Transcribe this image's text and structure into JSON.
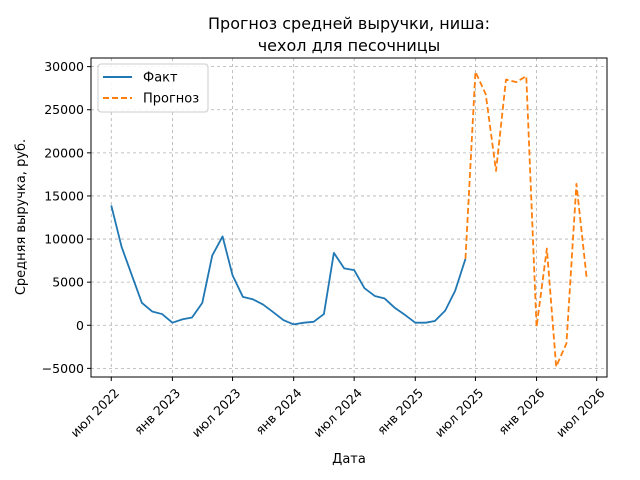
{
  "chart_data": {
    "type": "line",
    "title": [
      "Прогноз средней выручки, ниша:",
      "чехол для песочницы"
    ],
    "xlabel": "Дата",
    "ylabel": "Средняя выручка, руб.",
    "ylim": [
      -6000,
      31000
    ],
    "yticks": [
      -5000,
      0,
      5000,
      10000,
      15000,
      20000,
      25000,
      30000
    ],
    "ytick_labels": [
      "−5000",
      "0",
      "5000",
      "10000",
      "15000",
      "20000",
      "25000",
      "30000"
    ],
    "xlim": [
      "2022-05-01",
      "2026-08-01"
    ],
    "xticks": [
      "2022-07-01",
      "2023-01-01",
      "2023-07-01",
      "2024-01-01",
      "2024-07-01",
      "2025-01-01",
      "2025-07-01",
      "2026-01-01",
      "2026-07-01"
    ],
    "xtick_labels": [
      "июл 2022",
      "янв 2023",
      "июл 2023",
      "янв 2024",
      "июл 2024",
      "янв 2025",
      "июл 2025",
      "янв 2026",
      "июл 2026"
    ],
    "grid": true,
    "legend_position": "top-left",
    "series": [
      {
        "name": "Факт",
        "color": "#1f77b4",
        "style": "solid",
        "x": [
          "2022-07-01",
          "2022-08-01",
          "2022-09-01",
          "2022-10-01",
          "2022-11-01",
          "2022-12-01",
          "2023-01-01",
          "2023-02-01",
          "2023-03-01",
          "2023-04-01",
          "2023-05-01",
          "2023-06-01",
          "2023-07-01",
          "2023-08-01",
          "2023-09-01",
          "2023-10-01",
          "2023-11-01",
          "2023-12-01",
          "2024-01-01",
          "2024-02-01",
          "2024-03-01",
          "2024-04-01",
          "2024-05-01",
          "2024-06-01",
          "2024-07-01",
          "2024-08-01",
          "2024-09-01",
          "2024-10-01",
          "2024-11-01",
          "2024-12-01",
          "2025-01-01",
          "2025-02-01",
          "2025-03-01",
          "2025-04-01",
          "2025-05-01",
          "2025-06-01"
        ],
        "values": [
          13900,
          9100,
          5800,
          2600,
          1600,
          1300,
          300,
          700,
          900,
          2600,
          8100,
          10300,
          5800,
          3300,
          3000,
          2400,
          1500,
          600,
          100,
          300,
          400,
          1300,
          8400,
          6600,
          6400,
          4300,
          3400,
          3100,
          2000,
          1200,
          300,
          300,
          500,
          1700,
          4000,
          7700
        ]
      },
      {
        "name": "Прогноз",
        "color": "#ff7f0e",
        "style": "dashed",
        "x": [
          "2025-06-01",
          "2025-07-01",
          "2025-08-01",
          "2025-09-01",
          "2025-10-01",
          "2025-11-01",
          "2025-12-01",
          "2026-01-01",
          "2026-02-01",
          "2026-03-01",
          "2026-04-01",
          "2026-05-01",
          "2026-06-01"
        ],
        "values": [
          7700,
          29400,
          26800,
          17900,
          28500,
          28200,
          28900,
          -200,
          8900,
          -4800,
          -2100,
          16400,
          5400
        ]
      }
    ]
  }
}
